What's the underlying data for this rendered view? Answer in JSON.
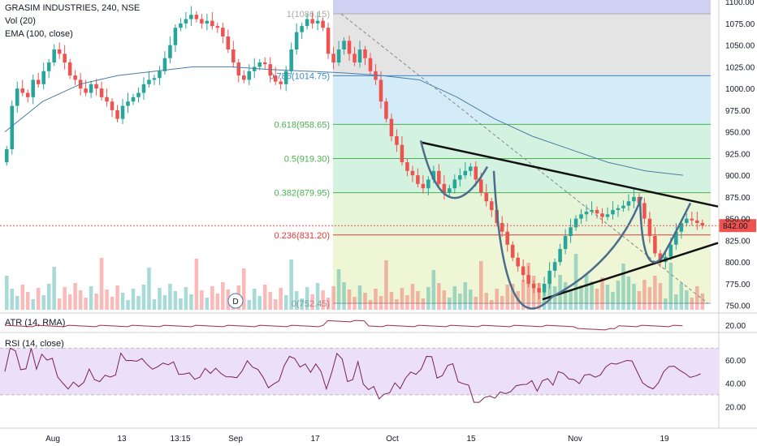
{
  "header": {
    "symbol": "GRASIM INDUSTRIES, 240, NSE",
    "vol": "Vol (20)",
    "ema": "EMA (100, close)"
  },
  "atr_label": "ATR (14, RMA)",
  "rsi_label": "RSI (14, close)",
  "last_price": "842.00",
  "event_marker": "D",
  "colors": {
    "up": "#26a69a",
    "down": "#ef5350",
    "ema": "#4a7ca8",
    "atr": "#a52a4a",
    "rsi": "#7b1f5a",
    "rsi_band": "#ece0f8",
    "trendline": "#111111",
    "pattern": "#4a6d8c"
  },
  "chart_data": {
    "type": "candlestick",
    "title": "GRASIM INDUSTRIES, 240, NSE",
    "price_axis": {
      "ticks": [
        1100,
        1075,
        1050,
        1025,
        1000,
        975,
        950,
        925,
        900,
        875,
        850,
        825,
        800,
        775,
        750
      ],
      "range": [
        745,
        1102
      ]
    },
    "time_axis": [
      "Aug",
      "13",
      "13:15",
      "Sep",
      "17",
      "Oct",
      "15",
      "Nov",
      "19"
    ],
    "fibonacci": [
      {
        "level": "1",
        "price": 1086.15,
        "label": "1(1086.15)",
        "color": "#aaaaaa"
      },
      {
        "level": "0.786",
        "price": 1014.75,
        "label": "0.786(1014.75)",
        "color": "#3a86c8"
      },
      {
        "level": "0.618",
        "price": 958.65,
        "label": "0.618(958.65)",
        "color": "#4caf50"
      },
      {
        "level": "0.5",
        "price": 919.3,
        "label": "0.5(919.30)",
        "color": "#4caf50"
      },
      {
        "level": "0.382",
        "price": 879.95,
        "label": "0.382(879.95)",
        "color": "#4caf50"
      },
      {
        "level": "0.236",
        "price": 831.2,
        "label": "0.236(831.20)",
        "color": "#e53935"
      },
      {
        "level": "0",
        "price": 752.45,
        "label": "0(752.45)",
        "color": "#999999"
      }
    ],
    "series": [
      {
        "name": "close",
        "values": [
          930,
          980,
          1000,
          995,
          990,
          1010,
          1005,
          1020,
          1030,
          1045,
          1040,
          1030,
          1015,
          1010,
          1000,
          995,
          1005,
          1000,
          990,
          985,
          975,
          965,
          980,
          985,
          990,
          995,
          1005,
          1010,
          1012,
          1020,
          1035,
          1050,
          1070,
          1075,
          1080,
          1085,
          1080,
          1075,
          1078,
          1072,
          1070,
          1060,
          1045,
          1030,
          1015,
          1010,
          1020,
          1025,
          1030,
          1028,
          1015,
          1008,
          1005,
          1020,
          1045,
          1065,
          1072,
          1080,
          1075,
          1078,
          1070,
          1040,
          1030,
          1045,
          1055,
          1040,
          1030,
          1045,
          1035,
          1020,
          1010,
          985,
          965,
          945,
          935,
          915,
          905,
          900,
          890,
          885,
          895,
          905,
          890,
          880,
          885,
          895,
          900,
          905,
          910,
          895,
          880,
          870,
          860,
          845,
          835,
          820,
          805,
          795,
          785,
          775,
          770,
          765,
          775,
          790,
          800,
          815,
          830,
          840,
          850,
          855,
          858,
          860,
          856,
          852,
          855,
          860,
          862,
          865,
          870,
          875,
          868,
          850,
          830,
          810,
          800,
          806,
          820,
          835,
          845,
          850,
          848,
          845,
          842
        ]
      },
      {
        "name": "EMA (100, close)",
        "values": [
          950,
          985,
          1005,
          1015,
          1020,
          1025,
          1025,
          1022,
          1020,
          1018,
          1015,
          1010,
          990,
          965,
          945,
          930,
          915,
          905,
          900
        ]
      }
    ],
    "atr_range": [
      15,
      25
    ],
    "rsi_axis": {
      "ticks": [
        60,
        40,
        20
      ],
      "bands": [
        70,
        30
      ]
    }
  }
}
